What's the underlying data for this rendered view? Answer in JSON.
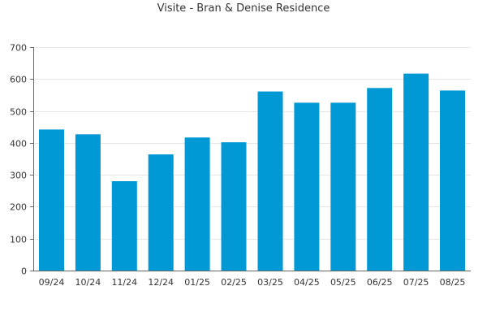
{
  "chart_data": {
    "type": "bar",
    "title": "Visite - Bran & Denise Residence",
    "categories": [
      "09/24",
      "10/24",
      "11/24",
      "12/24",
      "01/25",
      "02/25",
      "03/25",
      "04/25",
      "05/25",
      "06/25",
      "07/25",
      "08/25"
    ],
    "values": [
      442,
      427,
      280,
      364,
      417,
      402,
      561,
      526,
      526,
      572,
      617,
      564
    ],
    "ylim": [
      0,
      700
    ],
    "yticks": [
      0,
      100,
      200,
      300,
      400,
      500,
      600,
      700
    ],
    "grid": true,
    "legend": "none",
    "bar_color": "#0099d6"
  }
}
